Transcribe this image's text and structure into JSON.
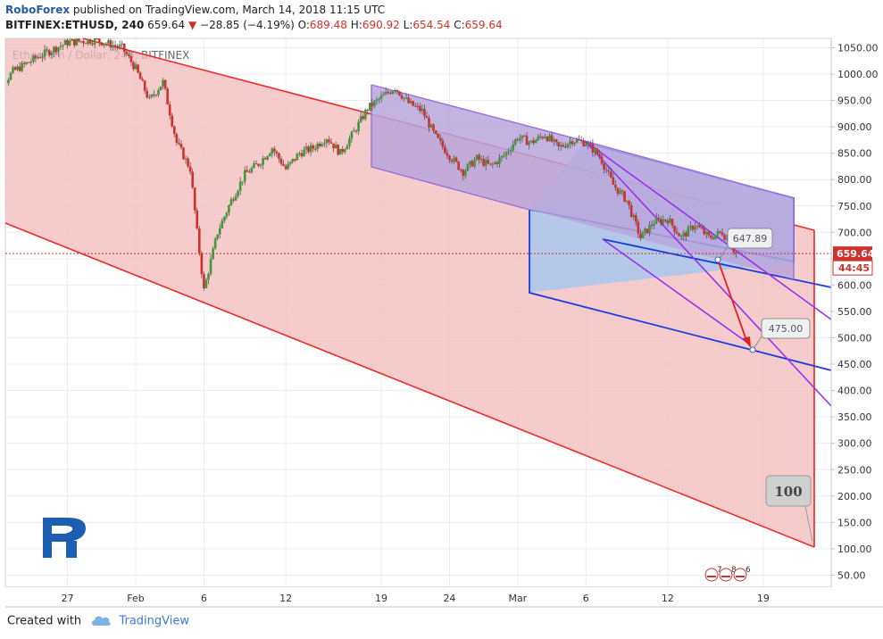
{
  "header": {
    "publisher": "RoboForex",
    "published_text": "published on TradingView.com, March 14, 2018 11:15 UTC",
    "symbol": "BITFINEX:ETHUSD, 240",
    "last": "659.64",
    "change": "−28.85 (−4.19%)",
    "o_label": "O:",
    "o": "689.48",
    "h_label": "H:",
    "h": "690.92",
    "l_label": "L:",
    "l": "654.54",
    "c_label": "C:",
    "c": "659.64"
  },
  "footer": {
    "created_with": "Created with",
    "brand": "TradingView"
  },
  "chart_data": {
    "type": "candlestick",
    "watermark": "Ethereum / Dollar, 240, BITFINEX",
    "x_tick_labels": [
      "27",
      "Feb",
      "6",
      "12",
      "19",
      "24",
      "Mar",
      "6",
      "12",
      "19"
    ],
    "x_tick_days": [
      -5,
      0,
      5,
      11,
      18,
      23,
      28,
      33,
      39,
      46
    ],
    "y_tick_labels": [
      "1050.00",
      "1000.00",
      "950.00",
      "900.00",
      "850.00",
      "800.00",
      "750.00",
      "700.00",
      "650.00",
      "600.00",
      "550.00",
      "500.00",
      "450.00",
      "400.00",
      "350.00",
      "300.00",
      "250.00",
      "200.00",
      "150.00",
      "100.00",
      "50.00"
    ],
    "ylim": [
      20,
      1065
    ],
    "last_price": {
      "value": 659.64,
      "label": "659.64",
      "countdown": "44:45",
      "color": "#d0312d"
    },
    "close_path_days_values": [
      [
        -11,
        940
      ],
      [
        -9,
        1005
      ],
      [
        -7,
        1035
      ],
      [
        -5,
        1060
      ],
      [
        -3,
        1065
      ],
      [
        -1,
        1050
      ],
      [
        0,
        1010
      ],
      [
        1,
        950
      ],
      [
        2,
        985
      ],
      [
        3,
        870
      ],
      [
        4,
        820
      ],
      [
        4.5,
        700
      ],
      [
        5,
        590
      ],
      [
        6,
        700
      ],
      [
        7,
        760
      ],
      [
        8,
        810
      ],
      [
        9,
        830
      ],
      [
        10,
        860
      ],
      [
        11,
        820
      ],
      [
        12,
        850
      ],
      [
        13,
        860
      ],
      [
        14,
        880
      ],
      [
        15,
        850
      ],
      [
        16,
        890
      ],
      [
        17,
        935
      ],
      [
        18,
        955
      ],
      [
        19,
        975
      ],
      [
        20,
        945
      ],
      [
        21,
        930
      ],
      [
        22,
        880
      ],
      [
        23,
        845
      ],
      [
        24,
        815
      ],
      [
        25,
        840
      ],
      [
        26,
        825
      ],
      [
        27,
        845
      ],
      [
        28,
        880
      ],
      [
        29,
        870
      ],
      [
        30,
        885
      ],
      [
        31,
        860
      ],
      [
        32,
        875
      ],
      [
        33,
        870
      ],
      [
        34,
        845
      ],
      [
        35,
        790
      ],
      [
        36,
        760
      ],
      [
        37,
        690
      ],
      [
        38,
        720
      ],
      [
        39,
        725
      ],
      [
        40,
        690
      ],
      [
        41,
        715
      ],
      [
        42,
        690
      ],
      [
        43,
        700
      ],
      [
        44,
        660
      ]
    ],
    "annotations": [
      {
        "type": "label",
        "text": "647.89",
        "value": 647.89
      },
      {
        "type": "label",
        "text": "475.00",
        "value": 475.0
      },
      {
        "type": "label",
        "text": "100",
        "value": 100
      }
    ],
    "colors": {
      "up": "#3f9a3a",
      "down": "#d0312d",
      "big_channel_fill": "#f4bcbc",
      "big_channel_line": "#ec2a2a",
      "blue_channel_fill": "#a9c8f0",
      "blue_channel_line": "#1a3dde",
      "purple_channel_fill": "#b8a6dc",
      "purple_channel_line": "#9a6fdc",
      "fan_line": "#9a2ff0",
      "arrow": "#e02020"
    },
    "event_icons": [
      "7",
      "8",
      "6"
    ]
  }
}
